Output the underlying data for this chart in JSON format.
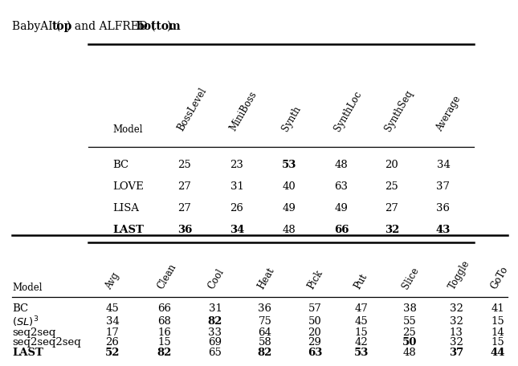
{
  "title_parts": [
    {
      "text": "BabyAI (",
      "bold": false
    },
    {
      "text": "top",
      "bold": true
    },
    {
      "text": ") and ALFRED (",
      "bold": false
    },
    {
      "text": "bottom",
      "bold": true
    },
    {
      "text": ").",
      "bold": false
    }
  ],
  "top_table": {
    "col_headers": [
      "Model",
      "BossLevel",
      "MiniBoss",
      "Synth",
      "SynthLoc",
      "SynthSeq",
      "Average"
    ],
    "rows": [
      {
        "model": "BC",
        "vals": [
          "25",
          "23",
          "53",
          "48",
          "20",
          "34"
        ],
        "bold_model": false,
        "bold_vals": [
          false,
          false,
          true,
          false,
          false,
          false
        ]
      },
      {
        "model": "LOVE",
        "vals": [
          "27",
          "31",
          "40",
          "63",
          "25",
          "37"
        ],
        "bold_model": false,
        "bold_vals": [
          false,
          false,
          false,
          false,
          false,
          false
        ]
      },
      {
        "model": "LISA",
        "vals": [
          "27",
          "26",
          "49",
          "49",
          "27",
          "36"
        ],
        "bold_model": false,
        "bold_vals": [
          false,
          false,
          false,
          false,
          false,
          false
        ]
      },
      {
        "model": "LAST",
        "vals": [
          "36",
          "34",
          "48",
          "66",
          "32",
          "43"
        ],
        "bold_model": true,
        "bold_vals": [
          true,
          true,
          false,
          true,
          true,
          true
        ]
      }
    ]
  },
  "bottom_table": {
    "col_headers": [
      "Model",
      "Avg",
      "Clean",
      "Cool",
      "Heat",
      "Pick",
      "Put",
      "Slice",
      "Toggle",
      "GoTo"
    ],
    "rows": [
      {
        "model": "BC",
        "model_math": false,
        "vals": [
          "45",
          "66",
          "31",
          "36",
          "57",
          "47",
          "38",
          "32",
          "41"
        ],
        "bold_model": false,
        "bold_vals": [
          false,
          false,
          false,
          false,
          false,
          false,
          false,
          false,
          false
        ]
      },
      {
        "model": "(SL)^3",
        "model_math": true,
        "vals": [
          "34",
          "68",
          "82",
          "75",
          "50",
          "45",
          "55",
          "32",
          "15"
        ],
        "bold_model": false,
        "bold_vals": [
          false,
          false,
          true,
          false,
          false,
          false,
          false,
          false,
          false
        ]
      },
      {
        "model": "seq2seq",
        "model_math": false,
        "vals": [
          "17",
          "16",
          "33",
          "64",
          "20",
          "15",
          "25",
          "13",
          "14"
        ],
        "bold_model": false,
        "bold_vals": [
          false,
          false,
          false,
          false,
          false,
          false,
          false,
          false,
          false
        ]
      },
      {
        "model": "seq2seq2seq",
        "model_math": false,
        "vals": [
          "26",
          "15",
          "69",
          "58",
          "29",
          "42",
          "50",
          "32",
          "15"
        ],
        "bold_model": false,
        "bold_vals": [
          false,
          false,
          false,
          false,
          false,
          false,
          true,
          false,
          false
        ]
      },
      {
        "model": "LAST",
        "model_math": false,
        "vals": [
          "52",
          "82",
          "65",
          "82",
          "63",
          "53",
          "48",
          "37",
          "44"
        ],
        "bold_model": true,
        "bold_vals": [
          true,
          true,
          false,
          true,
          true,
          true,
          false,
          true,
          true
        ]
      }
    ]
  }
}
